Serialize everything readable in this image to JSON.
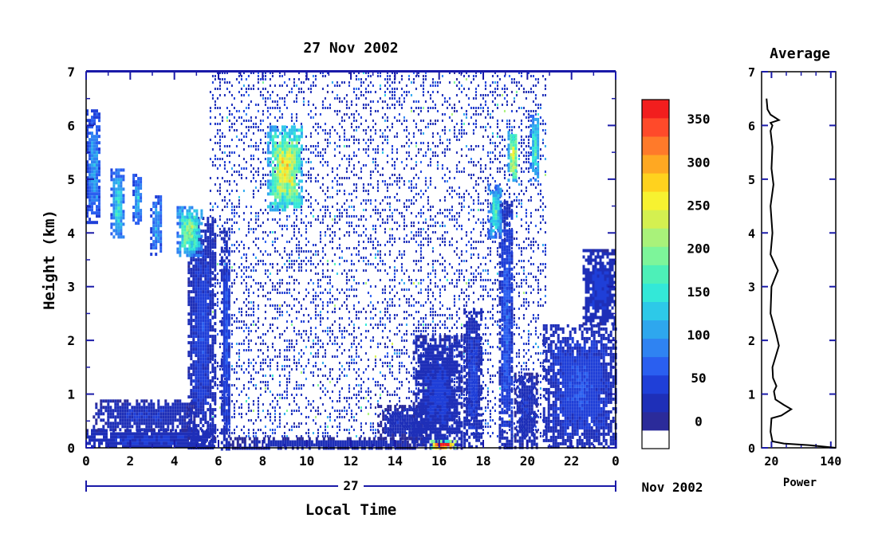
{
  "chart_data": [
    {
      "type": "heatmap",
      "title": "27 Nov 2002",
      "xlabel": "Local Time",
      "ylabel": "Height (km)",
      "xlim": [
        0,
        24
      ],
      "ylim": [
        0,
        7
      ],
      "x_ticks": [
        "0",
        "2",
        "4",
        "6",
        "8",
        "10",
        "12",
        "14",
        "16",
        "18",
        "20",
        "22",
        "0"
      ],
      "y_ticks": [
        "0",
        "1",
        "2",
        "3",
        "4",
        "5",
        "6",
        "7"
      ],
      "date_axis": {
        "day": "27",
        "month_year": "Nov 2002"
      },
      "colorbar": {
        "ticks": [
          "0",
          "50",
          "100",
          "150",
          "200",
          "250",
          "300",
          "350"
        ],
        "range": [
          0,
          375
        ],
        "colors": [
          "#ffffff",
          "#2b2b9a",
          "#1e2fb8",
          "#1f3fd8",
          "#2a5ff0",
          "#2f83f2",
          "#2ea7ee",
          "#2dc9e8",
          "#33e8d8",
          "#4df0b8",
          "#7df59a",
          "#a9f27a",
          "#d4f050",
          "#f7f230",
          "#ffd21e",
          "#ffa822",
          "#ff7a2a",
          "#ff4a2a",
          "#f21e1e"
        ]
      },
      "features": [
        {
          "t0": 0.0,
          "t1": 5.8,
          "h0": 0.0,
          "h1": 0.35,
          "v": 40
        },
        {
          "t0": 0.3,
          "t1": 4.9,
          "h0": 0.35,
          "h1": 0.9,
          "v": 35
        },
        {
          "t0": 4.6,
          "t1": 5.8,
          "h0": 0.0,
          "h1": 4.3,
          "v": 45
        },
        {
          "t0": 6.1,
          "t1": 6.5,
          "h0": 0.0,
          "h1": 4.1,
          "v": 55
        },
        {
          "t0": 6.5,
          "t1": 15.3,
          "h0": 0.0,
          "h1": 0.2,
          "v": 30
        },
        {
          "t0": 13.2,
          "t1": 15.4,
          "h0": 0.2,
          "h1": 0.8,
          "v": 30
        },
        {
          "t0": 14.8,
          "t1": 17.0,
          "h0": 0.0,
          "h1": 2.1,
          "v": 40
        },
        {
          "t0": 17.1,
          "t1": 17.9,
          "h0": 0.0,
          "h1": 2.6,
          "v": 45
        },
        {
          "t0": 18.7,
          "t1": 19.3,
          "h0": 0.0,
          "h1": 4.6,
          "v": 60
        },
        {
          "t0": 19.4,
          "t1": 20.4,
          "h0": 0.0,
          "h1": 1.4,
          "v": 35
        },
        {
          "t0": 20.7,
          "t1": 24.0,
          "h0": 0.0,
          "h1": 2.3,
          "v": 50
        },
        {
          "t0": 22.5,
          "t1": 24.0,
          "h0": 2.3,
          "h1": 3.7,
          "v": 40
        },
        {
          "t0": 0.0,
          "t1": 0.6,
          "h0": 4.2,
          "h1": 6.3,
          "v": 95
        },
        {
          "t0": 1.1,
          "t1": 1.7,
          "h0": 3.9,
          "h1": 5.2,
          "v": 130
        },
        {
          "t0": 2.1,
          "t1": 2.5,
          "h0": 4.2,
          "h1": 5.1,
          "v": 110
        },
        {
          "t0": 2.9,
          "t1": 3.4,
          "h0": 3.6,
          "h1": 4.7,
          "v": 100
        },
        {
          "t0": 4.1,
          "t1": 5.2,
          "h0": 3.6,
          "h1": 4.5,
          "v": 170
        },
        {
          "t0": 18.2,
          "t1": 18.8,
          "h0": 3.9,
          "h1": 4.9,
          "v": 140
        },
        {
          "t0": 19.1,
          "t1": 19.5,
          "h0": 5.0,
          "h1": 5.9,
          "v": 230
        },
        {
          "t0": 20.1,
          "t1": 20.5,
          "h0": 5.0,
          "h1": 6.2,
          "v": 150
        },
        {
          "t0": 8.2,
          "t1": 9.8,
          "h0": 4.4,
          "h1": 6.0,
          "v": 210
        },
        {
          "t0": 15.6,
          "t1": 16.7,
          "h0": 0.0,
          "h1": 0.15,
          "v": 330
        }
      ],
      "noise_region": {
        "t0": 5.6,
        "t1": 20.8,
        "h0": 0.2,
        "h1": 7.0
      }
    },
    {
      "type": "line",
      "title": "Average",
      "xlabel": "Power",
      "ylabel": "",
      "xlim": [
        0,
        150
      ],
      "ylim": [
        0,
        7
      ],
      "x_ticks": [
        "20",
        "140"
      ],
      "y_ticks": [
        "0",
        "1",
        "2",
        "3",
        "4",
        "5",
        "6",
        "7"
      ],
      "x": [
        150,
        95,
        45,
        22,
        18,
        20,
        40,
        60,
        45,
        28,
        25,
        30,
        23,
        22,
        35,
        30,
        18,
        20,
        33,
        18,
        22,
        18,
        24,
        20,
        22,
        18,
        22,
        18,
        35,
        18,
        12,
        10
      ],
      "y": [
        0.0,
        0.05,
        0.08,
        0.12,
        0.3,
        0.55,
        0.6,
        0.72,
        0.8,
        0.9,
        1.05,
        1.15,
        1.3,
        1.5,
        1.9,
        2.1,
        2.5,
        3.0,
        3.3,
        3.6,
        4.0,
        4.5,
        4.9,
        5.2,
        5.6,
        5.9,
        6.0,
        6.05,
        6.1,
        6.2,
        6.3,
        6.5
      ]
    }
  ]
}
